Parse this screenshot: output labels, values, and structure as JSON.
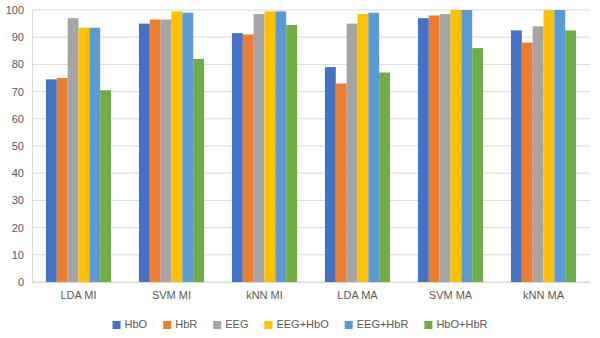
{
  "chart_data": {
    "type": "bar",
    "categories": [
      "LDA MI",
      "SVM MI",
      "kNN MI",
      "LDA MA",
      "SVM MA",
      "kNN MA"
    ],
    "series": [
      {
        "name": "HbO",
        "color": "#4472c4",
        "values": [
          74.5,
          95,
          91.5,
          79,
          97,
          92.5
        ]
      },
      {
        "name": "HbR",
        "color": "#ed7d31",
        "values": [
          75,
          96.5,
          91,
          73,
          98,
          88
        ]
      },
      {
        "name": "EEG",
        "color": "#a5a5a5",
        "values": [
          97,
          96.5,
          98.5,
          95,
          98.5,
          94
        ]
      },
      {
        "name": "EEG+HbO",
        "color": "#ffc000",
        "values": [
          93.5,
          99.5,
          99.5,
          98.5,
          100,
          100
        ]
      },
      {
        "name": "EEG+HbR",
        "color": "#5b9bd5",
        "values": [
          93.5,
          99,
          99.5,
          99,
          100,
          100
        ]
      },
      {
        "name": "HbO+HbR",
        "color": "#70ad47",
        "values": [
          70.5,
          82,
          94.5,
          77,
          86,
          92.5
        ]
      }
    ],
    "ylim": [
      0,
      100
    ],
    "yticks": [
      0,
      10,
      20,
      30,
      40,
      50,
      60,
      70,
      80,
      90,
      100
    ],
    "grid": true,
    "legend": "bottom"
  }
}
